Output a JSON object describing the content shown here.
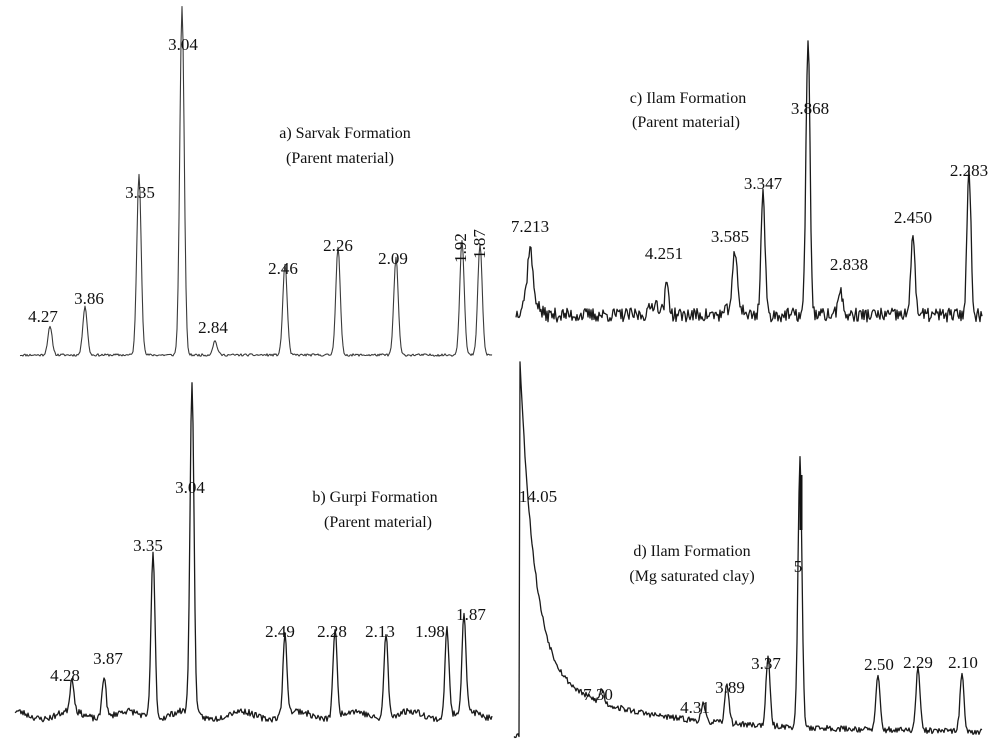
{
  "chart_data": [
    {
      "type": "line",
      "panel": "a",
      "title": "a) Sarvak Formation",
      "subtitle": "(Parent material)",
      "peaks": [
        {
          "d": "4.27",
          "value": 0.08
        },
        {
          "d": "3.86",
          "value": 0.14
        },
        {
          "d": "3.35",
          "value": 0.52
        },
        {
          "d": "3.04",
          "value": 1.0
        },
        {
          "d": "2.84",
          "value": 0.04
        },
        {
          "d": "2.46",
          "value": 0.26
        },
        {
          "d": "2.26",
          "value": 0.31
        },
        {
          "d": "2.09",
          "value": 0.28
        },
        {
          "d": "1.92",
          "value": 0.33
        },
        {
          "d": "1.87",
          "value": 0.32
        }
      ]
    },
    {
      "type": "line",
      "panel": "b",
      "title": "b) Gurpi Formation",
      "subtitle": "(Parent material)",
      "peaks": [
        {
          "d": "4.28",
          "value": 0.1
        },
        {
          "d": "3.87",
          "value": 0.13
        },
        {
          "d": "3.35",
          "value": 0.5
        },
        {
          "d": "3.04",
          "value": 1.0
        },
        {
          "d": "2.49",
          "value": 0.24
        },
        {
          "d": "2.28",
          "value": 0.27
        },
        {
          "d": "2.13",
          "value": 0.26
        },
        {
          "d": "1.98",
          "value": 0.27
        },
        {
          "d": "1.87",
          "value": 0.3
        }
      ]
    },
    {
      "type": "line",
      "panel": "c",
      "title": "c) Ilam Formation",
      "subtitle": "(Parent material)",
      "peaks": [
        {
          "d": "7.213",
          "value": 0.14
        },
        {
          "d": "4.251",
          "value": 0.11
        },
        {
          "d": "3.585",
          "value": 0.16
        },
        {
          "d": "3.347",
          "value": 0.44
        },
        {
          "d": "3.868",
          "value": 1.0
        },
        {
          "d": "2.838",
          "value": 0.1
        },
        {
          "d": "2.450",
          "value": 0.3
        },
        {
          "d": "2.283",
          "value": 0.52
        }
      ]
    },
    {
      "type": "line",
      "panel": "d",
      "title": "d) Ilam Formation",
      "subtitle": "(Mg saturated clay)",
      "peaks": [
        {
          "d": "14.05",
          "value": 1.0
        },
        {
          "d": "7.30",
          "value": 0.05
        },
        {
          "d": "4.31",
          "value": 0.06
        },
        {
          "d": "3.89",
          "value": 0.14
        },
        {
          "d": "3.37",
          "value": 0.24
        },
        {
          "d": "5",
          "value": 0.95
        },
        {
          "d": "2.50",
          "value": 0.19
        },
        {
          "d": "2.29",
          "value": 0.22
        },
        {
          "d": "2.10",
          "value": 0.2
        }
      ]
    }
  ]
}
